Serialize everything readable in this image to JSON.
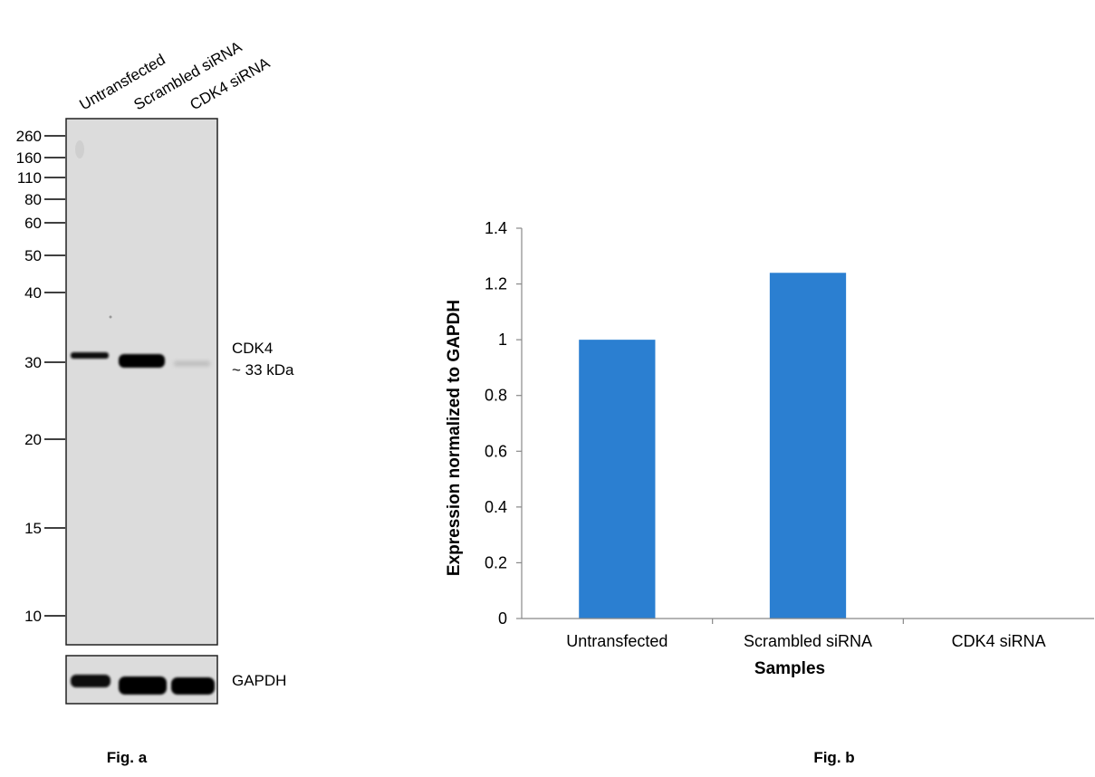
{
  "fig_a": {
    "lane_labels": [
      "Untransfected",
      "Scrambled siRNA",
      "CDK4 siRNA"
    ],
    "mw_markers": [
      "260",
      "160",
      "110",
      "80",
      "60",
      "50",
      "40",
      "30",
      "20",
      "15",
      "10"
    ],
    "band_label": "CDK4",
    "band_size": "~ 33 kDa",
    "loading_control": "GAPDH",
    "caption": "Fig. a"
  },
  "fig_b": {
    "caption": "Fig. b"
  },
  "chart_data": {
    "type": "bar",
    "title": "",
    "xlabel": "Samples",
    "ylabel": "Expression normalized to GAPDH",
    "categories": [
      "Untransfected",
      "Scrambled siRNA",
      "CDK4 siRNA"
    ],
    "values": [
      1.0,
      1.24,
      0.0
    ],
    "ylim": [
      0,
      1.4
    ],
    "yticks": [
      "0",
      "0.2",
      "0.4",
      "0.6",
      "0.8",
      "1",
      "1.2",
      "1.4"
    ],
    "grid": false,
    "bar_color": "#2B7FD1"
  }
}
